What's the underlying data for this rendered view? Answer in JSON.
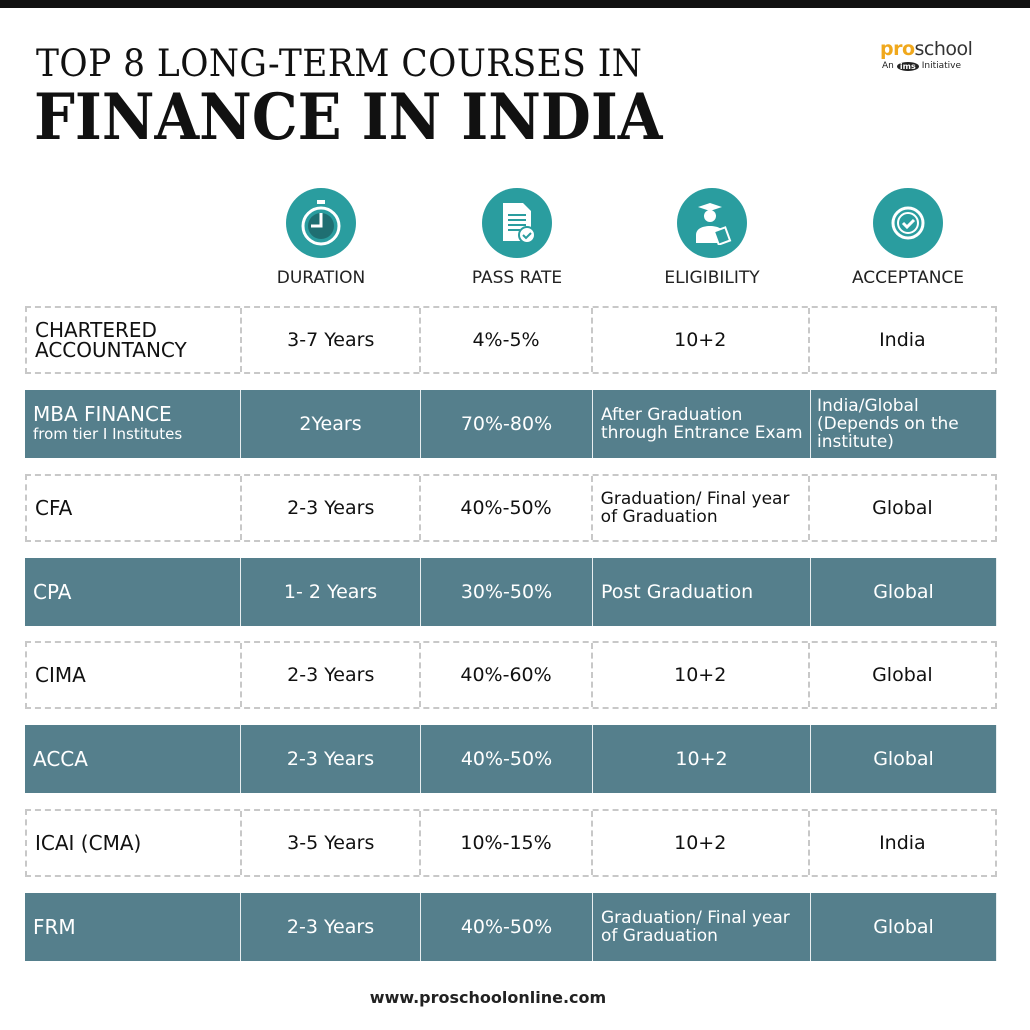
{
  "title_line1": "TOP 8 LONG-TERM COURSES IN",
  "title_line2": "FINANCE IN INDIA",
  "logo": {
    "pro": "pro",
    "school": "school",
    "prefix": "An",
    "ims": "ims",
    "suffix": "Initiative"
  },
  "headers": [
    {
      "label": "DURATION",
      "icon": "stopwatch-icon"
    },
    {
      "label": "PASS RATE",
      "icon": "document-check-icon"
    },
    {
      "label": "ELIGIBILITY",
      "icon": "graduate-icon"
    },
    {
      "label": "ACCEPTANCE",
      "icon": "check-badge-icon"
    }
  ],
  "rows": [
    {
      "course": "CHARTERED ACCOUNTANCY",
      "course_sub": "",
      "duration": "3-7 Years",
      "pass_rate": "4%-5%",
      "eligibility": "10+2",
      "acceptance": "India"
    },
    {
      "course": "MBA FINANCE",
      "course_sub": "from tier I Institutes",
      "duration": "2Years",
      "pass_rate": "70%-80%",
      "eligibility": "After Graduation through Entrance Exam",
      "acceptance": "India/Global (Depends on the institute)"
    },
    {
      "course": "CFA",
      "course_sub": "",
      "duration": "2-3 Years",
      "pass_rate": "40%-50%",
      "eligibility": "Graduation/ Final year of Graduation",
      "acceptance": "Global"
    },
    {
      "course": "CPA",
      "course_sub": "",
      "duration": "1- 2 Years",
      "pass_rate": "30%-50%",
      "eligibility": "Post Graduation",
      "acceptance": "Global"
    },
    {
      "course": "CIMA",
      "course_sub": "",
      "duration": "2-3 Years",
      "pass_rate": "40%-60%",
      "eligibility": "10+2",
      "acceptance": "Global"
    },
    {
      "course": "ACCA",
      "course_sub": "",
      "duration": "2-3 Years",
      "pass_rate": "40%-50%",
      "eligibility": "10+2",
      "acceptance": "Global"
    },
    {
      "course": "ICAI (CMA)",
      "course_sub": "",
      "duration": "3-5 Years",
      "pass_rate": "10%-15%",
      "eligibility": "10+2",
      "acceptance": "India"
    },
    {
      "course": "FRM",
      "course_sub": "",
      "duration": "2-3 Years",
      "pass_rate": "40%-50%",
      "eligibility": "Graduation/ Final year of Graduation",
      "acceptance": "Global"
    }
  ],
  "footer": "www.proschoolonline.com",
  "colors": {
    "teal": "#2a9d9f",
    "dark_row": "#557f8c",
    "logo_orange": "#f0a81c"
  }
}
